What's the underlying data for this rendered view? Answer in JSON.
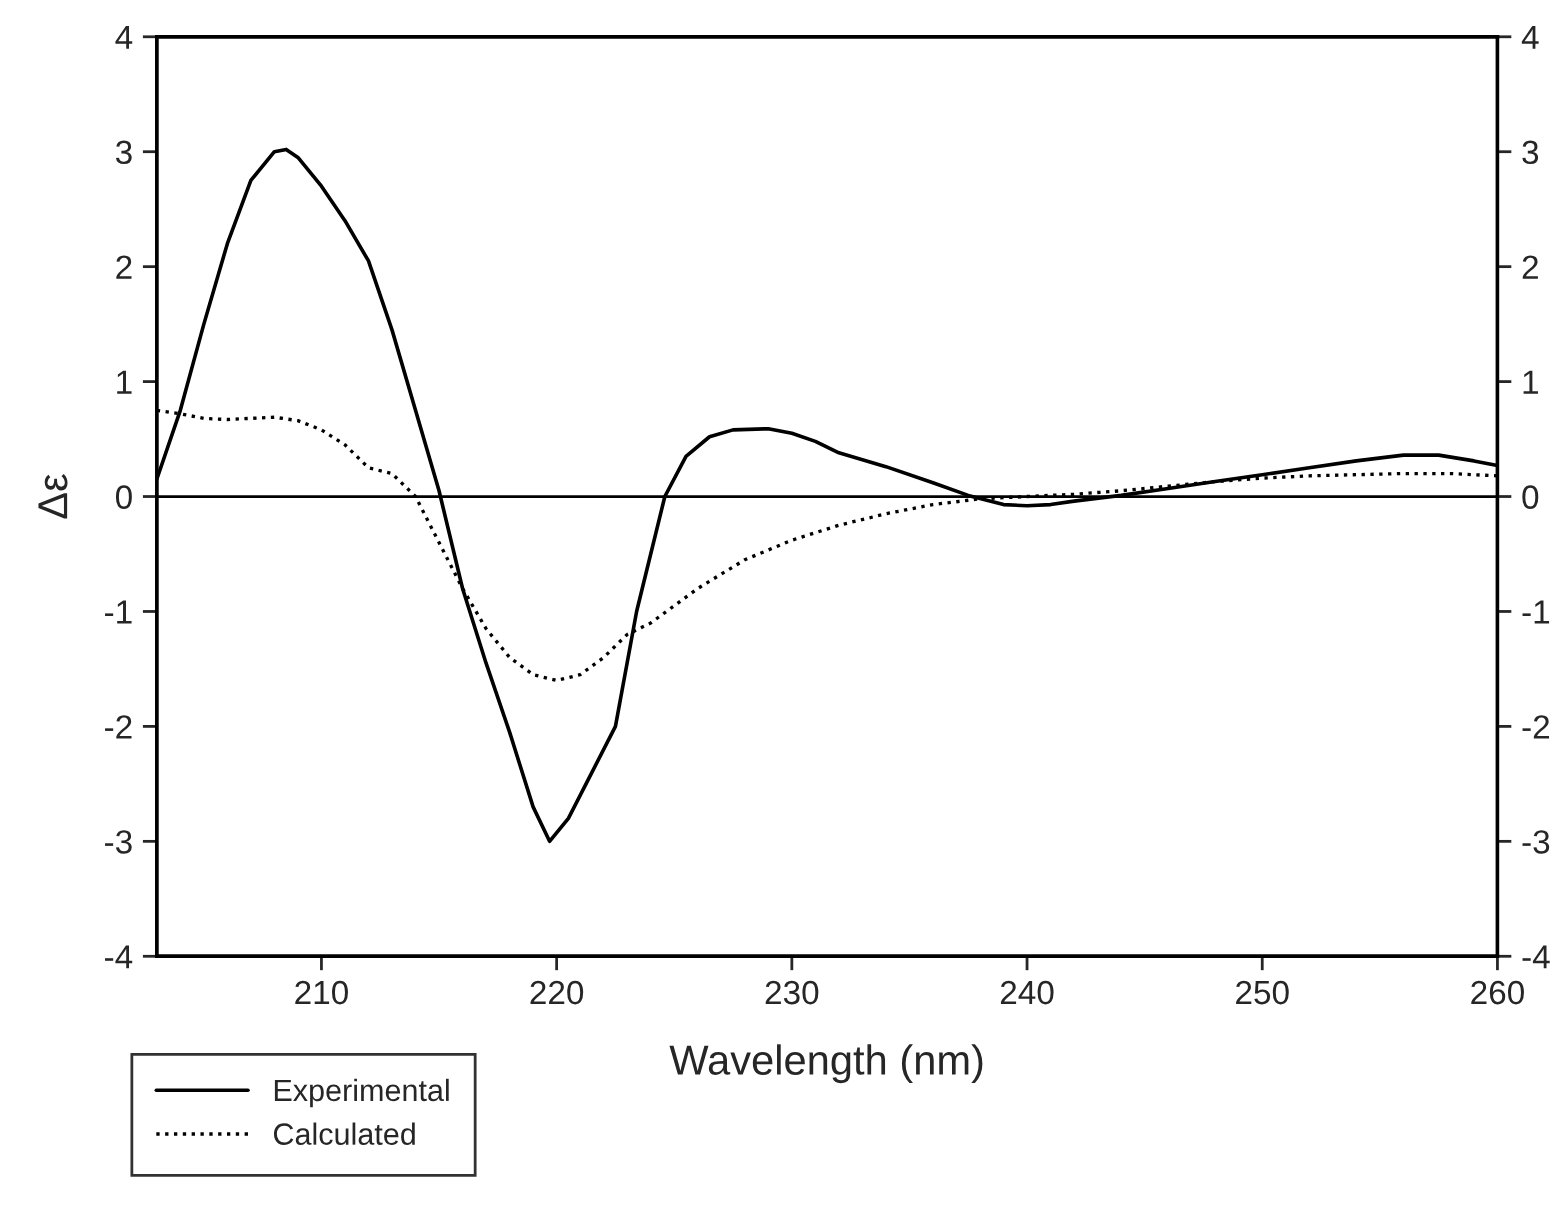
{
  "chart_data": {
    "type": "line",
    "xlabel": "Wavelength (nm)",
    "ylabel": "Δε",
    "xlim": [
      203,
      260
    ],
    "xticks": [
      210,
      220,
      230,
      240,
      250,
      260
    ],
    "ylim": [
      -4,
      4
    ],
    "yticks": [
      -4,
      -3,
      -2,
      -1,
      0,
      1,
      2,
      3,
      4
    ],
    "y2lim": [
      -4,
      4
    ],
    "y2ticks": [
      -4,
      -3,
      -2,
      -1,
      0,
      1,
      2,
      3,
      4
    ],
    "grid": false,
    "legend": "bottom left",
    "marker": "none",
    "ref_lines": [
      {
        "axis": "y",
        "value": 0,
        "color": "#000000",
        "line_style": "solid"
      }
    ],
    "series": [
      {
        "name": "Experimental",
        "color": "#000000",
        "line_style": "solid",
        "x": [
          203,
          204,
          205,
          206,
          207,
          208,
          208.5,
          209,
          210,
          211,
          212,
          213,
          214,
          215,
          216,
          217,
          218,
          219,
          219.7,
          220.5,
          221.5,
          222.5,
          223.4,
          224.6,
          225.5,
          226.5,
          227.5,
          229,
          230,
          231,
          232,
          234,
          236,
          237.5,
          239,
          240,
          241,
          242,
          244,
          246,
          248,
          250,
          252,
          254,
          256,
          257.5,
          259,
          260
        ],
        "values": [
          0.15,
          0.75,
          1.5,
          2.2,
          2.75,
          3.0,
          3.02,
          2.95,
          2.7,
          2.4,
          2.05,
          1.45,
          0.75,
          0.05,
          -0.8,
          -1.45,
          -2.05,
          -2.7,
          -3.0,
          -2.8,
          -2.4,
          -2.0,
          -1.0,
          0.0,
          0.35,
          0.52,
          0.58,
          0.59,
          0.55,
          0.48,
          0.38,
          0.26,
          0.12,
          0.01,
          -0.07,
          -0.08,
          -0.07,
          -0.04,
          0.01,
          0.07,
          0.13,
          0.19,
          0.25,
          0.31,
          0.36,
          0.36,
          0.31,
          0.27
        ]
      },
      {
        "name": "Calculated",
        "color": "#000000",
        "line_style": "dotted",
        "x": [
          203,
          204,
          205,
          206,
          207,
          208,
          209,
          210,
          211,
          212,
          213,
          214,
          215,
          216,
          217,
          218,
          219,
          220,
          221,
          222,
          223,
          224,
          225,
          226,
          228,
          230,
          232,
          234,
          236,
          238,
          240,
          242,
          244,
          246,
          248,
          250,
          252,
          254,
          256,
          258,
          260
        ],
        "values": [
          0.75,
          0.72,
          0.68,
          0.67,
          0.68,
          0.69,
          0.66,
          0.58,
          0.45,
          0.25,
          0.2,
          0.0,
          -0.4,
          -0.8,
          -1.15,
          -1.4,
          -1.55,
          -1.6,
          -1.55,
          -1.4,
          -1.2,
          -1.1,
          -0.95,
          -0.8,
          -0.55,
          -0.38,
          -0.25,
          -0.15,
          -0.07,
          -0.02,
          0.0,
          0.02,
          0.05,
          0.09,
          0.13,
          0.16,
          0.18,
          0.19,
          0.2,
          0.2,
          0.18
        ]
      }
    ]
  }
}
